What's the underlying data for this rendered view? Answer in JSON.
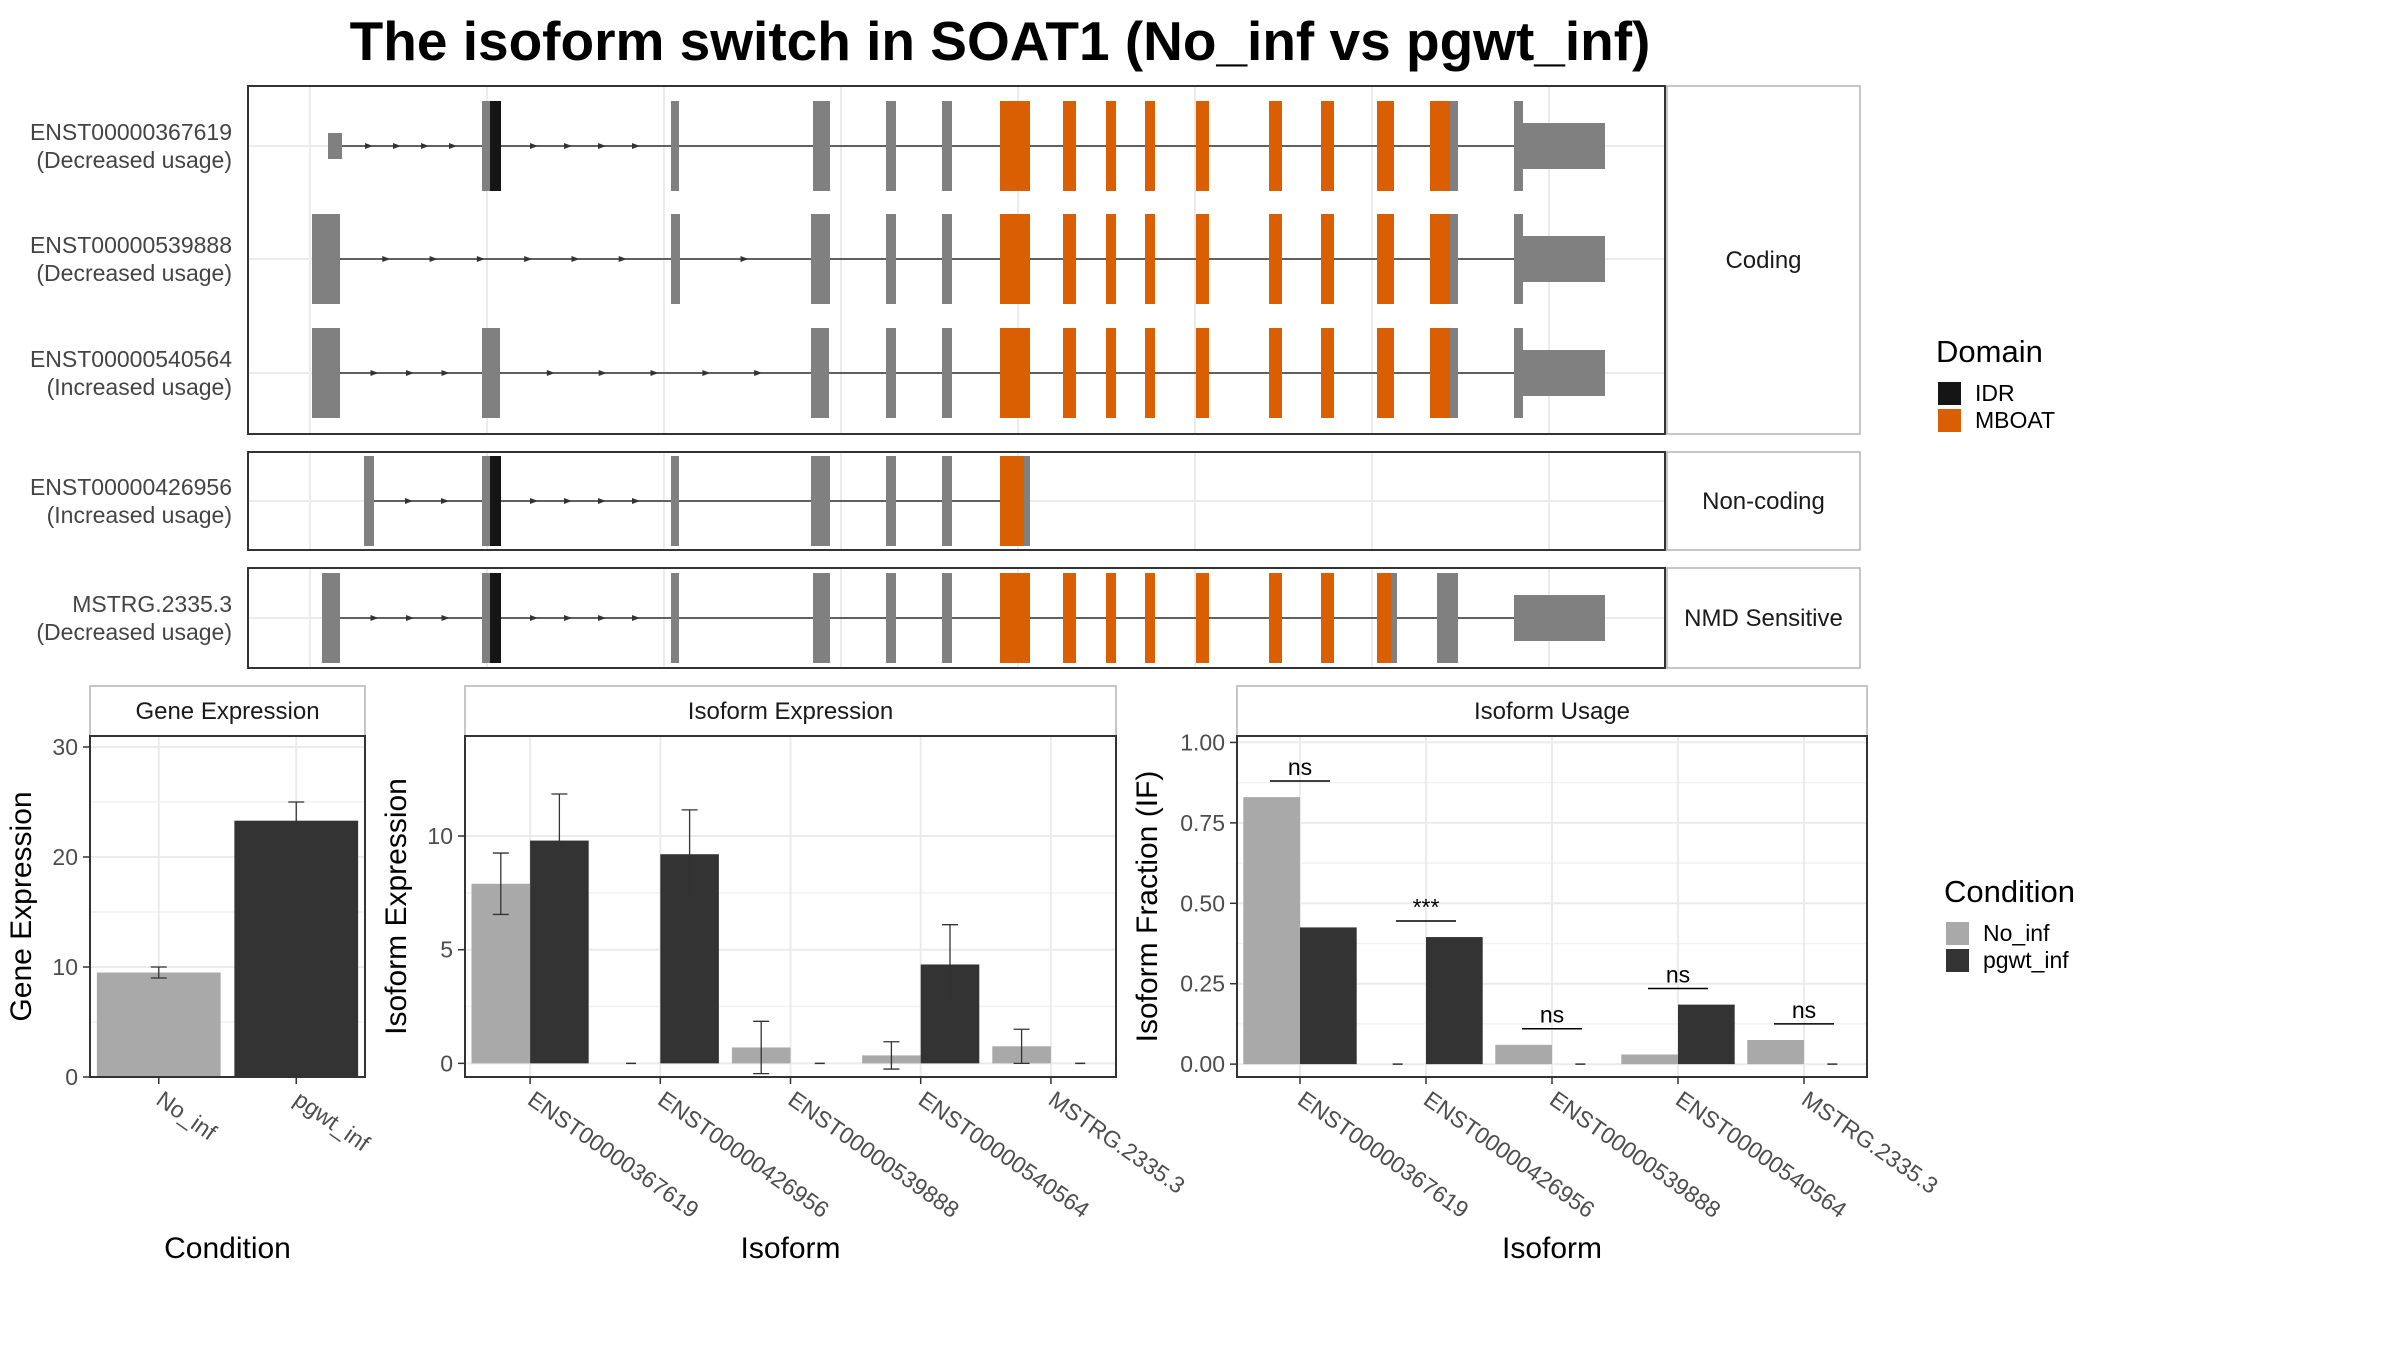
{
  "title": "The isoform switch in SOAT1 (No_inf vs pgwt_inf)",
  "colors": {
    "no_inf": "#a9a9a9",
    "pgwt_inf": "#333333",
    "exon": "#808080",
    "idr": "#151515",
    "mboat": "#d95f02",
    "grid": "#ebebeb"
  },
  "chart_data": [
    {
      "type": "gene-structure",
      "groups": [
        {
          "label": "Coding",
          "isoforms": [
            "ENST00000367619",
            "ENST00000539888",
            "ENST00000540564"
          ]
        },
        {
          "label": "Non-coding",
          "isoforms": [
            "ENST00000426956"
          ]
        },
        {
          "label": "NMD Sensitive",
          "isoforms": [
            "MSTRG.2335.3"
          ]
        }
      ],
      "isoform_labels": [
        {
          "id": "ENST00000367619",
          "usage": "(Decreased usage)"
        },
        {
          "id": "ENST00000539888",
          "usage": "(Decreased usage)"
        },
        {
          "id": "ENST00000540564",
          "usage": "(Increased usage)"
        },
        {
          "id": "ENST00000426956",
          "usage": "(Increased usage)"
        },
        {
          "id": "MSTRG.2335.3",
          "usage": "(Decreased usage)"
        }
      ],
      "legend": {
        "title": "Domain",
        "entries": [
          "IDR",
          "MBOAT"
        ]
      }
    },
    {
      "type": "bar",
      "strip": "Gene Expression",
      "xlabel": "Condition",
      "ylabel": "Gene Expression",
      "categories": [
        "No_inf",
        "pgwt_inf"
      ],
      "values": [
        9.5,
        23.3
      ],
      "errors": [
        0.5,
        1.7
      ],
      "ylim": [
        0,
        31
      ],
      "yticks": [
        0,
        10,
        20,
        30
      ]
    },
    {
      "type": "bar",
      "strip": "Isoform Expression",
      "xlabel": "Isoform",
      "ylabel": "Isoform Expression",
      "categories": [
        "ENST00000367619",
        "ENST00000426956",
        "ENST00000539888",
        "ENST00000540564",
        "MSTRG.2335.3"
      ],
      "series": [
        {
          "name": "No_inf",
          "values": [
            7.9,
            0.0,
            0.7,
            0.35,
            0.75
          ],
          "errors": [
            1.35,
            0,
            1.15,
            0.6,
            0.75
          ]
        },
        {
          "name": "pgwt_inf",
          "values": [
            9.8,
            9.2,
            0.0,
            4.35,
            0.0
          ],
          "errors": [
            2.05,
            1.95,
            0,
            1.75,
            0
          ]
        }
      ],
      "ylim": [
        -0.6,
        14.4
      ],
      "yticks": [
        0,
        5,
        10
      ]
    },
    {
      "type": "bar",
      "strip": "Isoform Usage",
      "xlabel": "Isoform",
      "ylabel": "Isoform Fraction (IF)",
      "categories": [
        "ENST00000367619",
        "ENST00000426956",
        "ENST00000539888",
        "ENST00000540564",
        "MSTRG.2335.3"
      ],
      "series": [
        {
          "name": "No_inf",
          "values": [
            0.83,
            0.0,
            0.06,
            0.03,
            0.075
          ]
        },
        {
          "name": "pgwt_inf",
          "values": [
            0.425,
            0.395,
            0.0,
            0.185,
            0.0
          ]
        }
      ],
      "significance": [
        "ns",
        "***",
        "ns",
        "ns",
        "ns"
      ],
      "ylim": [
        -0.04,
        1.02
      ],
      "yticks": [
        "0.00",
        "0.25",
        "0.50",
        "0.75",
        "1.00"
      ],
      "legend": {
        "title": "Condition",
        "entries": [
          "No_inf",
          "pgwt_inf"
        ]
      }
    }
  ]
}
